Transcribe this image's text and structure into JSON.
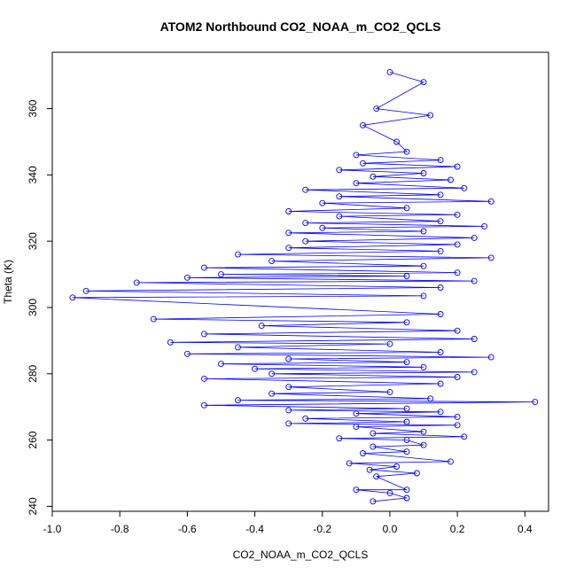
{
  "colors": {
    "series": "#0000FF",
    "axis": "#000000",
    "background": "#FFFFFF"
  },
  "chart_data": {
    "type": "scatter",
    "title": "ATOM2 Northbound CO2_NOAA_m_CO2_QCLS",
    "xlabel": "CO2_NOAA_m_CO2_QCLS",
    "ylabel": "Theta (K)",
    "xlim": [
      -1.0,
      0.47
    ],
    "ylim": [
      238.5,
      377
    ],
    "xticks": [
      -1.0,
      -0.8,
      -0.6,
      -0.4,
      -0.2,
      0.0,
      0.2,
      0.4
    ],
    "xtick_labels": [
      "-1.0",
      "-0.8",
      "-0.6",
      "-0.4",
      "-0.2",
      "0.0",
      "0.2",
      "0.4"
    ],
    "yticks": [
      240,
      260,
      280,
      300,
      320,
      340,
      360
    ],
    "ytick_labels": [
      "240",
      "260",
      "280",
      "300",
      "320",
      "340",
      "360"
    ],
    "grid": false,
    "marker": "open-circle",
    "connected": true,
    "series": [
      {
        "name": "CO2_NOAA_m_CO2_QCLS",
        "x": [
          -0.05,
          0.05,
          0.0,
          -0.1,
          0.05,
          -0.04,
          0.08,
          -0.06,
          0.02,
          -0.12,
          0.18,
          -0.08,
          0.05,
          -0.05,
          0.1,
          0.05,
          -0.15,
          0.22,
          -0.05,
          0.1,
          -0.1,
          0.2,
          -0.3,
          0.05,
          -0.25,
          0.2,
          -0.1,
          0.15,
          -0.3,
          0.05,
          -0.55,
          0.43,
          -0.45,
          0.12,
          -0.35,
          0.0,
          -0.3,
          0.15,
          -0.55,
          0.2,
          -0.35,
          0.25,
          -0.4,
          0.1,
          -0.5,
          0.05,
          -0.3,
          0.3,
          -0.6,
          0.15,
          -0.45,
          0.0,
          -0.65,
          0.25,
          -0.55,
          0.2,
          -0.38,
          0.05,
          -0.7,
          0.15,
          -0.94,
          0.1,
          -0.9,
          0.15,
          -0.75,
          0.25,
          -0.6,
          0.05,
          -0.5,
          0.2,
          -0.55,
          0.1,
          -0.35,
          0.3,
          -0.45,
          0.15,
          -0.3,
          0.2,
          -0.25,
          0.25,
          -0.3,
          0.1,
          -0.2,
          0.28,
          -0.25,
          0.15,
          -0.15,
          0.2,
          -0.3,
          0.05,
          -0.2,
          0.3,
          -0.15,
          0.15,
          -0.25,
          0.22,
          -0.1,
          0.18,
          -0.05,
          0.1,
          -0.15,
          0.2,
          -0.08,
          0.15,
          -0.1,
          0.05,
          0.02,
          -0.08,
          0.12,
          -0.04,
          0.1,
          0.0
        ],
        "y": [
          241.5,
          242.5,
          244.0,
          245.0,
          245.0,
          249.0,
          250.0,
          251.0,
          252.0,
          253.0,
          253.5,
          256.0,
          256.5,
          258.0,
          258.5,
          260.0,
          260.5,
          261.0,
          262.0,
          262.5,
          264.0,
          264.5,
          265.0,
          265.5,
          266.5,
          267.0,
          268.0,
          268.5,
          269.0,
          269.5,
          270.5,
          271.5,
          272.0,
          272.5,
          274.0,
          274.5,
          276.0,
          277.0,
          278.5,
          279.0,
          280.0,
          280.5,
          281.5,
          282.0,
          283.0,
          283.5,
          284.5,
          285.0,
          286.0,
          286.5,
          288.0,
          289.0,
          289.5,
          290.5,
          292.0,
          293.0,
          294.5,
          295.5,
          296.5,
          298.0,
          303.0,
          303.5,
          305.0,
          306.0,
          307.5,
          308.0,
          309.0,
          309.5,
          310.0,
          310.5,
          312.0,
          312.5,
          314.0,
          315.0,
          316.0,
          317.0,
          318.0,
          319.0,
          320.0,
          321.0,
          322.5,
          323.0,
          324.0,
          324.5,
          325.5,
          326.0,
          327.5,
          328.0,
          329.0,
          330.0,
          331.5,
          332.0,
          333.5,
          334.0,
          335.5,
          336.0,
          337.5,
          338.5,
          339.5,
          340.5,
          341.5,
          342.5,
          343.5,
          344.5,
          346.0,
          347.0,
          350.0,
          355.0,
          358.0,
          360.0,
          368.0,
          371.0
        ]
      }
    ]
  }
}
